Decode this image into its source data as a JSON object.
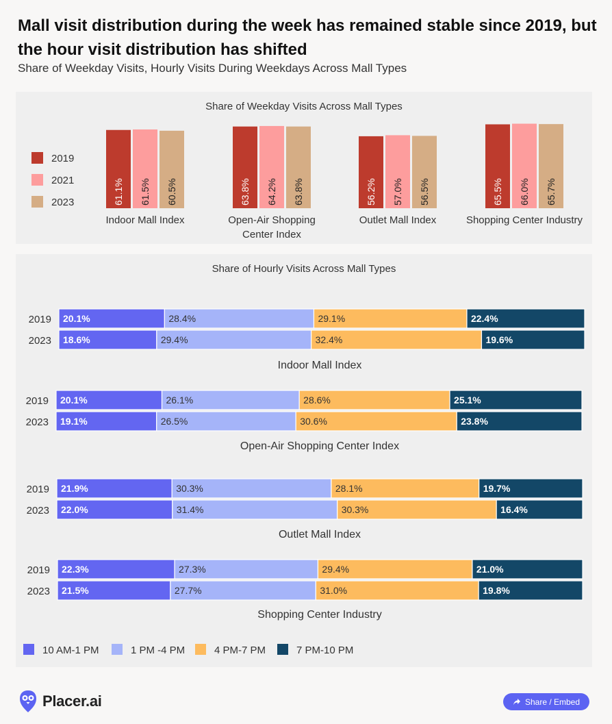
{
  "title": "Mall visit distribution during the week has remained stable since 2019, but the hour visit distribution has shifted",
  "subtitle": "Share of Weekday Visits, Hourly Visits During Weekdays Across Mall Types",
  "colors": {
    "y2019": "#bd3b2d",
    "y2021": "#fd9d9d",
    "y2023": "#d5ad85",
    "h10_1": "#6366f1",
    "h1_4": "#a5b4f9",
    "h4_7": "#fdbb5e",
    "h7_10": "#134767"
  },
  "chart_data": [
    {
      "type": "bar",
      "title": "Share of Weekday Visits Across Mall Types",
      "categories": [
        "Indoor Mall Index",
        "Open-Air Shopping Center Index",
        "Outlet Mall Index",
        "Shopping Center Industry"
      ],
      "series": [
        {
          "name": "2019",
          "values": [
            61.1,
            63.8,
            56.2,
            65.5
          ],
          "labels": [
            "61.1%",
            "63.8%",
            "56.2%",
            "65.5%"
          ]
        },
        {
          "name": "2021",
          "values": [
            61.5,
            64.2,
            57.0,
            66.0
          ],
          "labels": [
            "61.5%",
            "64.2%",
            "57.0%",
            "66.0%"
          ]
        },
        {
          "name": "2023",
          "values": [
            60.5,
            63.8,
            56.5,
            65.7
          ],
          "labels": [
            "60.5%",
            "63.8%",
            "56.5%",
            "65.7%"
          ]
        }
      ],
      "legend_placement": "left"
    },
    {
      "type": "bar",
      "stacked": true,
      "orientation": "horizontal",
      "title": "Share of Hourly Visits Across Mall Types",
      "series_names": [
        "10 AM-1 PM",
        "1 PM -4 PM",
        "4 PM-7 PM",
        "7 PM-10 PM"
      ],
      "groups": [
        {
          "name": "Indoor Mall Index",
          "rows": [
            {
              "year": "2019",
              "values": [
                20.1,
                28.4,
                29.1,
                22.4
              ],
              "labels": [
                "20.1%",
                "28.4%",
                "29.1%",
                "22.4%"
              ]
            },
            {
              "year": "2023",
              "values": [
                18.6,
                29.4,
                32.4,
                19.6
              ],
              "labels": [
                "18.6%",
                "29.4%",
                "32.4%",
                "19.6%"
              ]
            }
          ]
        },
        {
          "name": "Open-Air Shopping Center Index",
          "rows": [
            {
              "year": "2019",
              "values": [
                20.1,
                26.1,
                28.6,
                25.1
              ],
              "labels": [
                "20.1%",
                "26.1%",
                "28.6%",
                "25.1%"
              ]
            },
            {
              "year": "2023",
              "values": [
                19.1,
                26.5,
                30.6,
                23.8
              ],
              "labels": [
                "19.1%",
                "26.5%",
                "30.6%",
                "23.8%"
              ]
            }
          ]
        },
        {
          "name": "Outlet Mall Index",
          "rows": [
            {
              "year": "2019",
              "values": [
                21.9,
                30.3,
                28.1,
                19.7
              ],
              "labels": [
                "21.9%",
                "30.3%",
                "28.1%",
                "19.7%"
              ]
            },
            {
              "year": "2023",
              "values": [
                22.0,
                31.4,
                30.3,
                16.4
              ],
              "labels": [
                "22.0%",
                "31.4%",
                "30.3%",
                "16.4%"
              ]
            }
          ]
        },
        {
          "name": "Shopping Center Industry",
          "rows": [
            {
              "year": "2019",
              "values": [
                22.3,
                27.3,
                29.4,
                21.0
              ],
              "labels": [
                "22.3%",
                "27.3%",
                "29.4%",
                "21.0%"
              ]
            },
            {
              "year": "2023",
              "values": [
                21.5,
                27.7,
                31.0,
                19.8
              ],
              "labels": [
                "21.5%",
                "27.7%",
                "31.0%",
                "19.8%"
              ]
            }
          ]
        }
      ],
      "legend_placement": "bottom"
    }
  ],
  "footer": {
    "logo_text": "Placer.ai",
    "logo_icon": "owl-icon",
    "share_label": "Share / Embed",
    "share_icon": "share-icon"
  }
}
